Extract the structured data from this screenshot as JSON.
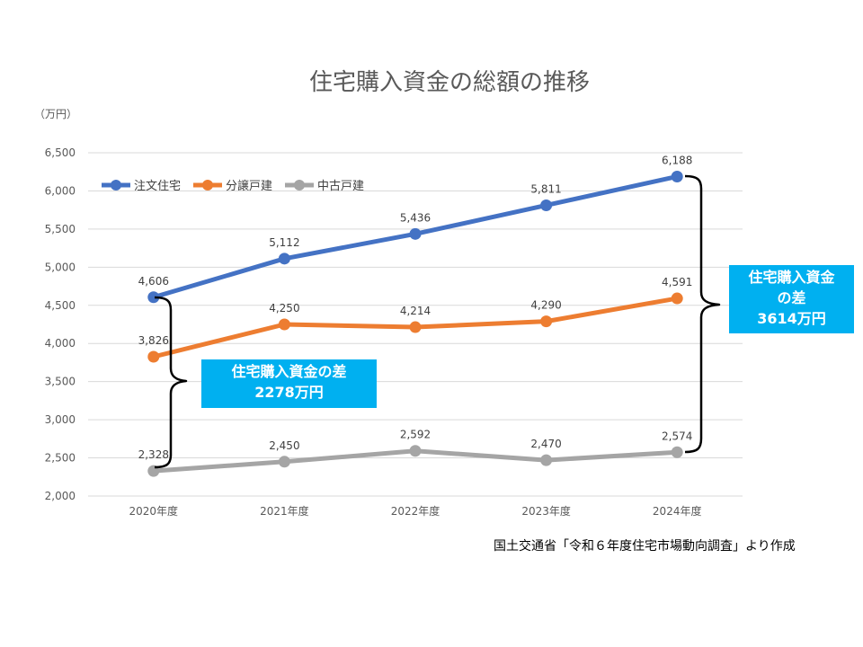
{
  "chart_data": {
    "type": "line",
    "title": "住宅購入資金の総額の推移",
    "unit_label": "（万円）",
    "categories": [
      "2020年度",
      "2021年度",
      "2022年度",
      "2023年度",
      "2024年度"
    ],
    "ylim": [
      2000,
      6500
    ],
    "yticks": [
      2000,
      2500,
      3000,
      3500,
      4000,
      4500,
      5000,
      5500,
      6000,
      6500
    ],
    "grid": true,
    "legend_position": "top-left",
    "series": [
      {
        "name": "注文住宅",
        "color": "#4472c4",
        "values": [
          4606,
          5112,
          5436,
          5811,
          6188
        ]
      },
      {
        "name": "分譲戸建",
        "color": "#ed7d31",
        "values": [
          3826,
          4250,
          4214,
          4290,
          4591
        ]
      },
      {
        "name": "中古戸建",
        "color": "#a5a5a5",
        "values": [
          2328,
          2450,
          2592,
          2470,
          2574
        ]
      }
    ]
  },
  "annotations": {
    "diff_2020": {
      "line1": "住宅購入資金の差",
      "line2": "2278万円",
      "color": "#00b0f0"
    },
    "diff_2024": {
      "line1": "住宅購入資金",
      "line2": "の差",
      "line3": "3614万円",
      "color": "#00b0f0"
    }
  },
  "source": "国土交通省「令和６年度住宅市場動向調査」より作成"
}
